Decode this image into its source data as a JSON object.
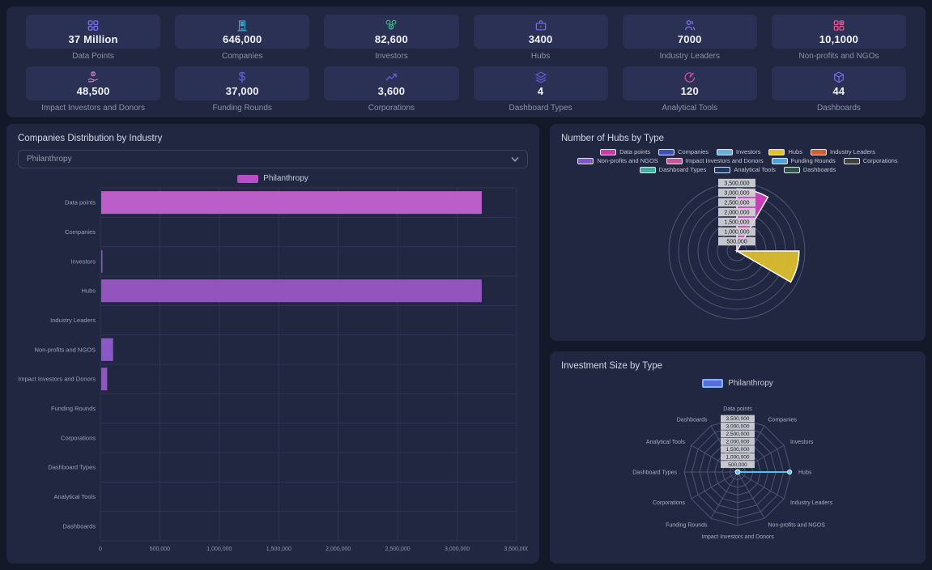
{
  "stats": {
    "cards": [
      {
        "icon": "data-points-icon",
        "value": "37 Million",
        "label": "Data Points",
        "color": "#7b6cf0"
      },
      {
        "icon": "companies-icon",
        "value": "646,000",
        "label": "Companies",
        "color": "#41aadd"
      },
      {
        "icon": "investors-icon",
        "value": "82,600",
        "label": "Investors",
        "color": "#3ecf8e"
      },
      {
        "icon": "hubs-icon",
        "value": "3400",
        "label": "Hubs",
        "color": "#7b6cf0"
      },
      {
        "icon": "industry-leaders-icon",
        "value": "7000",
        "label": "Industry Leaders",
        "color": "#8a77f2"
      },
      {
        "icon": "nonprofits-icon",
        "value": "10,1000",
        "label": "Non-profits and NGOs",
        "color": "#e8538f"
      },
      {
        "icon": "impact-investors-icon",
        "value": "48,500",
        "label": "Impact Investors and Donors",
        "color": "#df8ad2"
      },
      {
        "icon": "funding-rounds-icon",
        "value": "37,000",
        "label": "Funding Rounds",
        "color": "#6a5be8"
      },
      {
        "icon": "corporations-icon",
        "value": "3,600",
        "label": "Corporations",
        "color": "#6a5be8"
      },
      {
        "icon": "dashboard-types-icon",
        "value": "4",
        "label": "Dashboard Types",
        "color": "#6a5be8"
      },
      {
        "icon": "analytical-tools-icon",
        "value": "120",
        "label": "Analytical Tools",
        "color": "#e856a2"
      },
      {
        "icon": "dashboards-icon",
        "value": "44",
        "label": "Dashboards",
        "color": "#7b6cf0"
      }
    ]
  },
  "left_panel": {
    "title": "Companies Distribution by Industry",
    "dropdown": {
      "value": "Philanthropy"
    },
    "legend": {
      "label": "Philanthropy",
      "color": "#b94fc6"
    }
  },
  "hubs_panel": {
    "title": "Number of Hubs by Type",
    "legend": [
      {
        "label": "Data points",
        "color": "#c93aab"
      },
      {
        "label": "Companies",
        "color": "#3b4fc1"
      },
      {
        "label": "Investors",
        "color": "#68aede"
      },
      {
        "label": "Hubs",
        "color": "#e3c229"
      },
      {
        "label": "Industry Leaders",
        "color": "#d2602a"
      },
      {
        "label": "Non-profits and NGOS",
        "color": "#7e57c2"
      },
      {
        "label": "Impact Investors and Donors",
        "color": "#c2589c"
      },
      {
        "label": "Funding Rounds",
        "color": "#55a0d8"
      },
      {
        "label": "Corporations",
        "color": "#3f3f3f"
      },
      {
        "label": "Dashboard Types",
        "color": "#3fae9a"
      },
      {
        "label": "Analytical Tools",
        "color": "#1c3768"
      },
      {
        "label": "Dashboards",
        "color": "#2f5643"
      }
    ]
  },
  "investment_panel": {
    "title": "Investment Size by Type",
    "legend": {
      "label": "Philanthropy",
      "fill": "#5a6cdd",
      "border": "#7ab8f5"
    }
  },
  "chart_data": [
    {
      "type": "bar",
      "orientation": "horizontal",
      "title": "Companies Distribution by Industry",
      "series_name": "Philanthropy",
      "categories": [
        "Data points",
        "Companies",
        "Investors",
        "Hubs",
        "Industry Leaders",
        "Non-profits and NGOS",
        "Impact Investors and Donors",
        "Funding Rounds",
        "Corporations",
        "Dashboard Types",
        "Analytical Tools",
        "Dashboards"
      ],
      "values": [
        3200000,
        0,
        10000,
        3200000,
        0,
        100000,
        50000,
        0,
        0,
        0,
        0,
        0
      ],
      "bar_colors": [
        "#bb5ec9",
        "#9254bd",
        "#8b58c8",
        "#9254bd",
        "#9254bd",
        "#8b58c8",
        "#9156c2",
        "#9254bd",
        "#9254bd",
        "#9254bd",
        "#9254bd",
        "#9254bd"
      ],
      "xlim": [
        0,
        3500000
      ],
      "xticks": [
        "0",
        "500,000",
        "1,000,000",
        "1,500,000",
        "2,000,000",
        "2,500,000",
        "3,000,000",
        "3,500,000"
      ],
      "grid": true,
      "legend_position": "top"
    },
    {
      "type": "polar_area",
      "title": "Number of Hubs by Type",
      "categories": [
        "Data points",
        "Companies",
        "Investors",
        "Hubs",
        "Industry Leaders",
        "Non-profits and NGOS",
        "Impact Investors and Donors",
        "Funding Rounds",
        "Corporations",
        "Dashboard Types",
        "Analytical Tools",
        "Dashboards"
      ],
      "values": [
        3200000,
        0,
        0,
        3200000,
        0,
        0,
        0,
        0,
        0,
        0,
        0,
        0
      ],
      "colors": [
        "#d83fc0",
        "#3b4fc1",
        "#68aede",
        "#e2c22e",
        "#d2602a",
        "#7e57c2",
        "#c2589c",
        "#55a0d8",
        "#3f3f3f",
        "#3fae9a",
        "#1c3768",
        "#2f5643"
      ],
      "rlim": [
        0,
        3500000
      ],
      "rticks": [
        "500,000",
        "1,000,000",
        "1,500,000",
        "2,000,000",
        "2,500,000",
        "3,000,000",
        "3,500,000"
      ],
      "legend_position": "top"
    },
    {
      "type": "radar",
      "title": "Investment Size by Type",
      "categories": [
        "Data points",
        "Companies",
        "Investors",
        "Hubs",
        "Industry Leaders",
        "Non-profits and NGOS",
        "Impact Investors and Donors",
        "Funding Rounds",
        "Corporations",
        "Dashboard Types",
        "Analytical Tools",
        "Dashboards"
      ],
      "series": [
        {
          "name": "Philanthropy",
          "values": [
            0,
            0,
            0,
            3400000,
            0,
            0,
            0,
            0,
            0,
            0,
            0,
            0
          ],
          "line_color": "#4fc1f7",
          "fill_color": "#5a6cdd"
        }
      ],
      "rlim": [
        0,
        3500000
      ],
      "rticks": [
        "500,000",
        "1,000,000",
        "1,500,000",
        "2,000,000",
        "2,500,000",
        "3,000,000",
        "3,500,000"
      ],
      "legend_position": "top"
    }
  ]
}
